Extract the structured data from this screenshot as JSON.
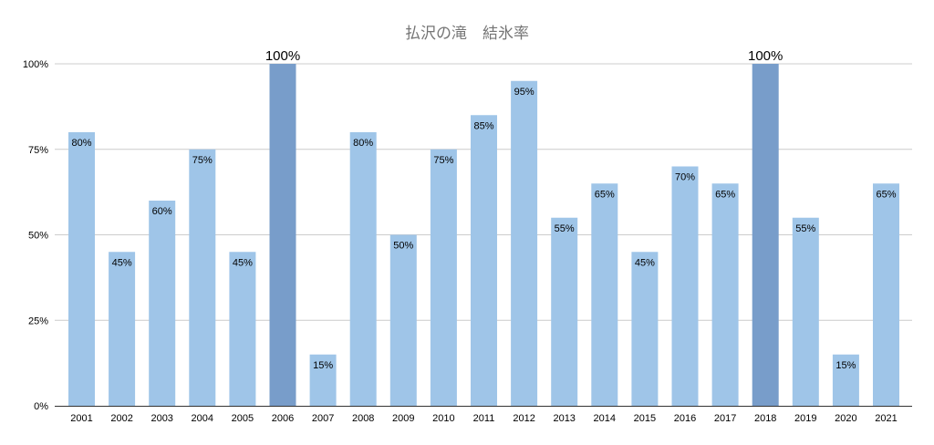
{
  "chart_data": {
    "type": "bar",
    "title": "払沢の滝　結氷率",
    "xlabel": "",
    "ylabel": "",
    "categories": [
      "2001",
      "2002",
      "2003",
      "2004",
      "2005",
      "2006",
      "2007",
      "2008",
      "2009",
      "2010",
      "2011",
      "2012",
      "2013",
      "2014",
      "2015",
      "2016",
      "2017",
      "2018",
      "2019",
      "2020",
      "2021"
    ],
    "values": [
      80,
      45,
      60,
      75,
      45,
      100,
      15,
      80,
      50,
      75,
      85,
      95,
      55,
      65,
      45,
      70,
      65,
      100,
      55,
      15,
      65
    ],
    "value_labels": [
      "80%",
      "45%",
      "60%",
      "75%",
      "45%",
      "100%",
      "15%",
      "80%",
      "50%",
      "75%",
      "85%",
      "95%",
      "55%",
      "65%",
      "45%",
      "70%",
      "65%",
      "100%",
      "55%",
      "15%",
      "65%"
    ],
    "ylim": [
      0,
      100
    ],
    "yticks": [
      0,
      25,
      50,
      75,
      100
    ],
    "ytick_labels": [
      "0%",
      "25%",
      "50%",
      "75%",
      "100%"
    ],
    "grid": true,
    "legend": "none",
    "colors": {
      "bar": "#9fc5e8",
      "highlight": "#789dca",
      "grid": "#cccccc",
      "axis": "#333333"
    },
    "highlighted_categories": [
      "2006",
      "2018"
    ]
  }
}
